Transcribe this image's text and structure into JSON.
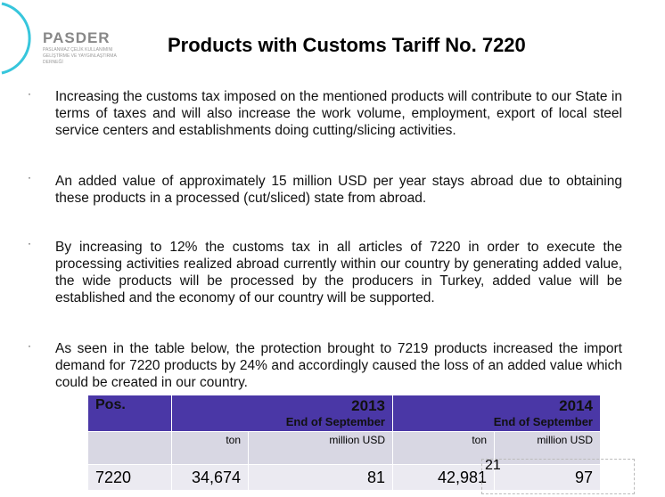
{
  "logo": {
    "name": "PASDER",
    "subtitle": "PASLANMAZ ÇELİK KULLANIMINI GELİŞTİRME VE YAYGINLAŞTIRMA DERNEĞİ"
  },
  "title": "Products with Customs Tariff No. 7220",
  "bullet": "·",
  "paragraphs": [
    "Increasing the customs tax imposed on the mentioned products will contribute to our State in terms of taxes and will also increase the work volume, employment, export of local steel service centers and establishments doing cutting/slicing activities.",
    "An added value of approximately 15 million USD per year stays abroad due to obtaining these products in a processed (cut/sliced) state from abroad.",
    "By increasing to 12% the customs tax in all articles of 7220 in order to execute the processing activities realized abroad currently within our country by generating added value, the wide products will be processed by the producers in Turkey, added value will be established and the economy of our country will be supported.",
    "As seen in the table below, the protection brought to 7219 products increased the import demand for 7220 products by 24% and accordingly caused the loss of an added value which could be created in our country."
  ],
  "table": {
    "pos_header": "Pos.",
    "years": [
      {
        "year": "2013",
        "period": "End of September"
      },
      {
        "year": "2014",
        "period": "End of September"
      }
    ],
    "units": [
      "ton",
      "million USD",
      "ton",
      "million USD"
    ],
    "row": [
      "7220",
      "34,674",
      "81",
      "42,981",
      "97"
    ]
  },
  "slide_number": "21"
}
